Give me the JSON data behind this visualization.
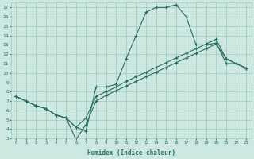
{
  "xlabel": "Humidex (Indice chaleur)",
  "xlim": [
    -0.5,
    23.5
  ],
  "ylim": [
    3,
    17.5
  ],
  "xticks": [
    0,
    1,
    2,
    3,
    4,
    5,
    6,
    7,
    8,
    9,
    10,
    11,
    12,
    13,
    14,
    15,
    16,
    17,
    18,
    19,
    20,
    21,
    22,
    23
  ],
  "yticks": [
    3,
    4,
    5,
    6,
    7,
    8,
    9,
    10,
    11,
    12,
    13,
    14,
    15,
    16,
    17
  ],
  "bg_color": "#cce8e0",
  "grid_color": "#a0c8bc",
  "line_color": "#2a6e62",
  "line1_x": [
    0,
    1,
    2,
    3,
    4,
    5,
    6,
    7,
    8,
    9,
    10,
    11,
    12,
    13,
    14,
    15,
    16,
    17,
    18,
    19,
    20,
    21,
    22,
    23
  ],
  "line1_y": [
    7.5,
    7.0,
    6.5,
    6.2,
    5.5,
    5.2,
    4.2,
    3.8,
    8.5,
    8.5,
    8.8,
    11.5,
    14.0,
    16.5,
    17.0,
    17.0,
    17.3,
    16.0,
    13.0,
    13.0,
    13.2,
    11.0,
    11.0,
    10.5
  ],
  "line2_x": [
    0,
    1,
    2,
    3,
    4,
    5,
    6,
    7,
    8,
    9,
    10,
    11,
    12,
    13,
    14,
    15,
    16,
    17,
    18,
    19,
    20,
    21,
    22,
    23
  ],
  "line2_y": [
    7.5,
    7.0,
    6.5,
    6.2,
    5.5,
    5.2,
    4.2,
    5.2,
    7.5,
    8.0,
    8.5,
    9.1,
    9.6,
    10.1,
    10.6,
    11.1,
    11.6,
    12.1,
    12.6,
    13.1,
    13.6,
    11.5,
    11.0,
    10.5
  ],
  "line3_x": [
    0,
    1,
    2,
    3,
    4,
    5,
    6,
    7,
    8,
    9,
    10,
    11,
    12,
    13,
    14,
    15,
    16,
    17,
    18,
    19,
    20,
    21,
    22,
    23
  ],
  "line3_y": [
    7.5,
    7.0,
    6.5,
    6.2,
    5.5,
    5.2,
    2.9,
    4.5,
    7.0,
    7.6,
    8.1,
    8.6,
    9.1,
    9.6,
    10.1,
    10.6,
    11.1,
    11.6,
    12.1,
    12.6,
    13.1,
    11.5,
    11.0,
    10.5
  ]
}
